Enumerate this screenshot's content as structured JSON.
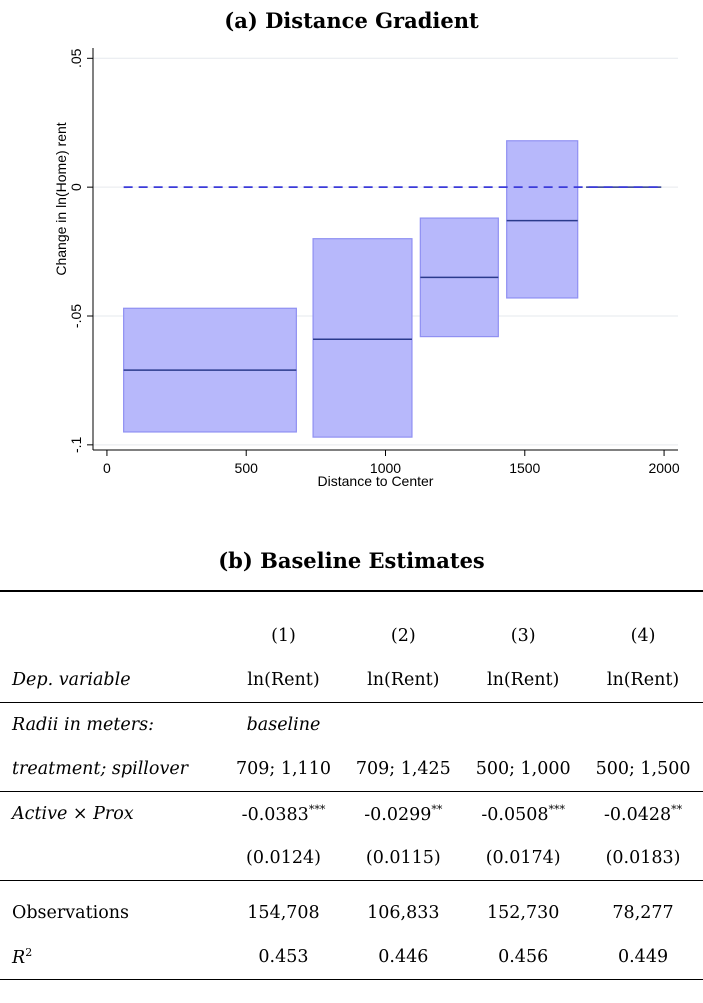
{
  "panel_a_title": "(a) Distance Gradient",
  "panel_b_title": "(b) Baseline Estimates",
  "chart_data": {
    "type": "range-bar",
    "title": "(a) Distance Gradient",
    "xlabel": "Distance to Center",
    "ylabel": "Change in ln(Home) rent",
    "xlim": [
      -50,
      2050
    ],
    "ylim": [
      -0.102,
      0.054
    ],
    "xticks": [
      0,
      500,
      1000,
      1500,
      2000
    ],
    "xtick_labels": [
      "0",
      "500",
      "1000",
      "1500",
      "2000"
    ],
    "yticks": [
      -0.1,
      -0.05,
      0,
      0.05
    ],
    "ytick_labels": [
      "-.1",
      "-.05",
      "0",
      ".05"
    ],
    "grid": true,
    "reference_line": {
      "y": 0,
      "x_from": 60,
      "x_to": 1990,
      "style": "dashed",
      "color": "#3b3bd9"
    },
    "colors": {
      "fill": "#b7b8fb",
      "edge": "#8f90f2",
      "estimate": "#2a3a8c"
    },
    "bins": [
      {
        "x0": 60,
        "x1": 680,
        "estimate": -0.071,
        "lower": -0.095,
        "upper": -0.047
      },
      {
        "x0": 740,
        "x1": 1095,
        "estimate": -0.059,
        "lower": -0.097,
        "upper": -0.02
      },
      {
        "x0": 1125,
        "x1": 1405,
        "estimate": -0.035,
        "lower": -0.058,
        "upper": -0.012
      },
      {
        "x0": 1435,
        "x1": 1690,
        "estimate": -0.013,
        "lower": -0.043,
        "upper": 0.018
      },
      {
        "x0": 1720,
        "x1": 1990,
        "estimate": 0.0,
        "lower": 0.0,
        "upper": 0.0
      }
    ]
  },
  "table": {
    "columns": [
      "(1)",
      "(2)",
      "(3)",
      "(4)"
    ],
    "dep_label": "Dep. variable",
    "dep_values": [
      "ln(Rent)",
      "ln(Rent)",
      "ln(Rent)",
      "ln(Rent)"
    ],
    "radii_label": "Radii in meters:",
    "radii_note": "baseline",
    "treat_label": "treatment; spillover",
    "treat_values": [
      "709; 1,110",
      "709; 1,425",
      "500; 1,000",
      "500; 1,500"
    ],
    "coef_label_a": "Active",
    "coef_label_times": " × ",
    "coef_label_b": "Prox",
    "coefs": [
      "-0.0383",
      "-0.0299",
      "-0.0508",
      "-0.0428"
    ],
    "stars": [
      "***",
      "**",
      "***",
      "**"
    ],
    "ses": [
      "(0.0124)",
      "(0.0115)",
      "(0.0174)",
      "(0.0183)"
    ],
    "obs_label": "Observations",
    "obs_values": [
      "154,708",
      "106,833",
      "152,730",
      "78,277"
    ],
    "r2_label": "R",
    "r2_sup": "2",
    "r2_values": [
      "0.453",
      "0.446",
      "0.456",
      "0.449"
    ]
  }
}
